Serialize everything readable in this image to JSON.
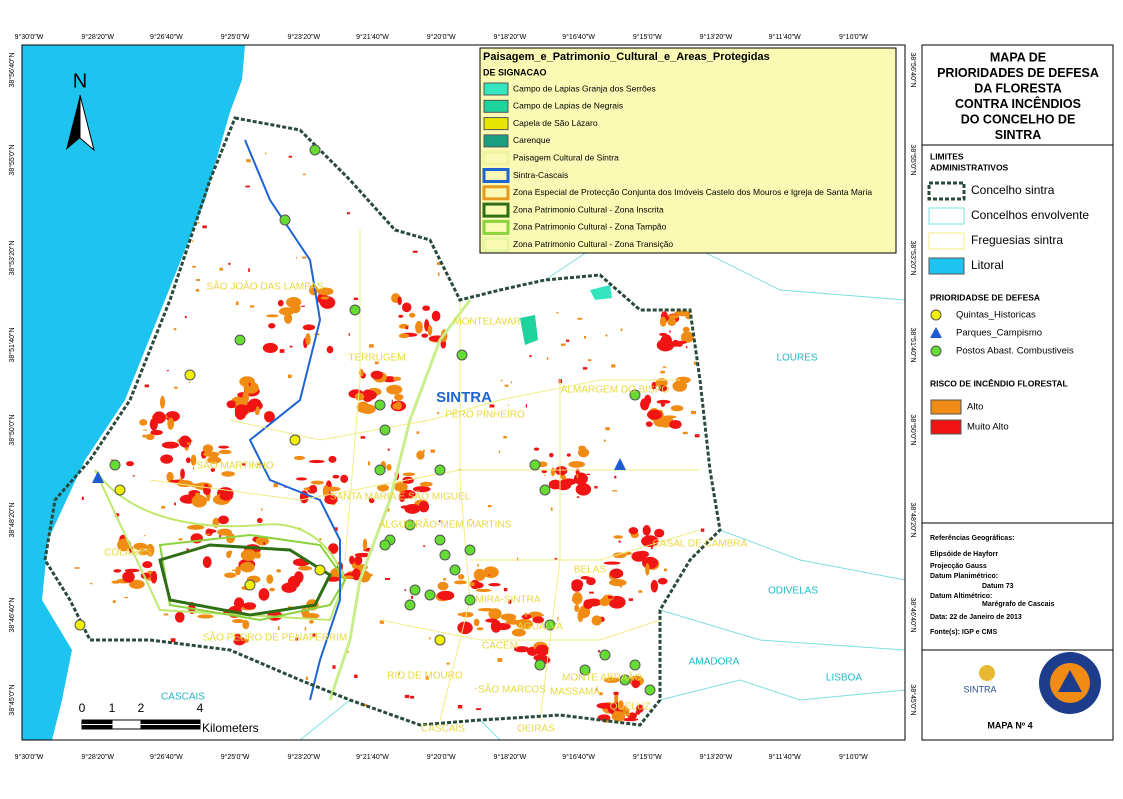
{
  "coords": {
    "top": [
      "9°30'0\"W",
      "9°28'20\"W",
      "9°26'40\"W",
      "9°25'0\"W",
      "9°23'20\"W",
      "9°21'40\"W",
      "9°20'0\"W",
      "9°18'20\"W",
      "9°16'40\"W",
      "9°15'0\"W",
      "9°13'20\"W",
      "9°11'40\"W",
      "9°10'0\"W"
    ],
    "left": [
      "38°56'40\"N",
      "38°55'0\"N",
      "38°53'20\"N",
      "38°51'40\"N",
      "38°50'0\"N",
      "38°48'20\"N",
      "38°46'40\"N",
      "38°45'0\"N"
    ]
  },
  "map": {
    "north": "N",
    "scale": {
      "ticks": [
        "0",
        "1",
        "2",
        "4"
      ],
      "unit": "Kilometers"
    },
    "places": [
      "SÃO JOÃO DAS LAMPAS",
      "MONTELAVAR",
      "TERRUGEM",
      "SINTRA",
      "PÊRO PINHEIRO",
      "ALMARGEM DO BISPO",
      "SÃO MARTINHO",
      "SANTA MARIA E SÃO MIGUEL",
      "ALGUEIRÃO-MEM MARTINS",
      "COLARES",
      "SÃO PEDRO DE PENAFERRIM",
      "RIO DE MOURO",
      "CASAL DE CAMBRA",
      "BELAS",
      "MIRA-SINTRA",
      "AGUALVA",
      "CACÉM",
      "SÃO MARCOS",
      "MONTE ABRAÃO",
      "MASSAMÁ",
      "QUELUZ",
      "LOURES",
      "ODIVELAS",
      "AMADORA",
      "LISBOA",
      "CASCAIS",
      "CASCAIS",
      "OEIRAS"
    ]
  },
  "overlay_legend": {
    "title": "Paisagem_e_Patrimonio_Cultural_e_Areas_Protegidas",
    "subtitle": "DE SIGNACAO",
    "items": [
      {
        "label": "Campo de Lapias Granja dos Serrões",
        "color": "#33e6c0"
      },
      {
        "label": "Campo de Lapias de Negrais",
        "color": "#1fd39c"
      },
      {
        "label": "Capela de São Lázaro",
        "color": "#e6e600"
      },
      {
        "label": "Carenque",
        "color": "#1a9e80"
      },
      {
        "label": "Paisagem Cultural de Sintra",
        "color": "#eef5a0"
      },
      {
        "label": "Sintra-Cascais",
        "color": "#1e64d2"
      },
      {
        "label": "Zona Especial de Protecção Conjunta dos Imóveis Castelo dos Mouros e Igreja de Santa Maria",
        "color": "#e69b1e"
      },
      {
        "label": "Zona Patrimonio Cultural - Zona Inscrita",
        "color": "#2e6e14"
      },
      {
        "label": "Zona Patrimonio Cultural - Zona Tampão",
        "color": "#8cd23c"
      },
      {
        "label": "Zona Patrimonio Cultural - Zona Transição",
        "color": "#e6f5a0"
      }
    ]
  },
  "panel": {
    "title": [
      "MAPA DE",
      "PRIORIDADES DE DEFESA",
      "DA FLORESTA",
      "CONTRA INCÊNDIOS",
      "DO CONCELHO DE",
      "SINTRA"
    ],
    "limits_title": [
      "LIMITES",
      "ADMINISTRATIVOS"
    ],
    "limits": [
      {
        "label": "Concelho sintra",
        "color": "#ffffff"
      },
      {
        "label": "Concelhos envolvente",
        "color": "#ffffff"
      },
      {
        "label": "Freguesias sintra",
        "color": "#ffffff"
      },
      {
        "label": "Litoral",
        "color": "#1ec4f0"
      }
    ],
    "priority_title": "PRIORIDADSE DE DEFESA",
    "priorities": [
      "Quintas_Historicas",
      "Parques_Campismo",
      "Postos Abast. Combustiveis"
    ],
    "risk_title": "RISCO DE INCÊNDIO FLORESTAL",
    "risks": [
      {
        "label": "Alto",
        "color": "#f08c14"
      },
      {
        "label": "Muito Alto",
        "color": "#f01414"
      }
    ],
    "references": [
      "Referências Geográficas:",
      "Elipsóide de Hayforr",
      "Projecção Gauss",
      "Datum Planimétrico:",
      "Datum 73",
      "Datum Altimétrico:",
      "Marégrafo de Cascais",
      "Data: 22 de Janeiro de 2013",
      "Fonte(s): IGP e CMS"
    ],
    "logo_text": "SINTRA",
    "map_number": "MAPA Nº 4"
  }
}
